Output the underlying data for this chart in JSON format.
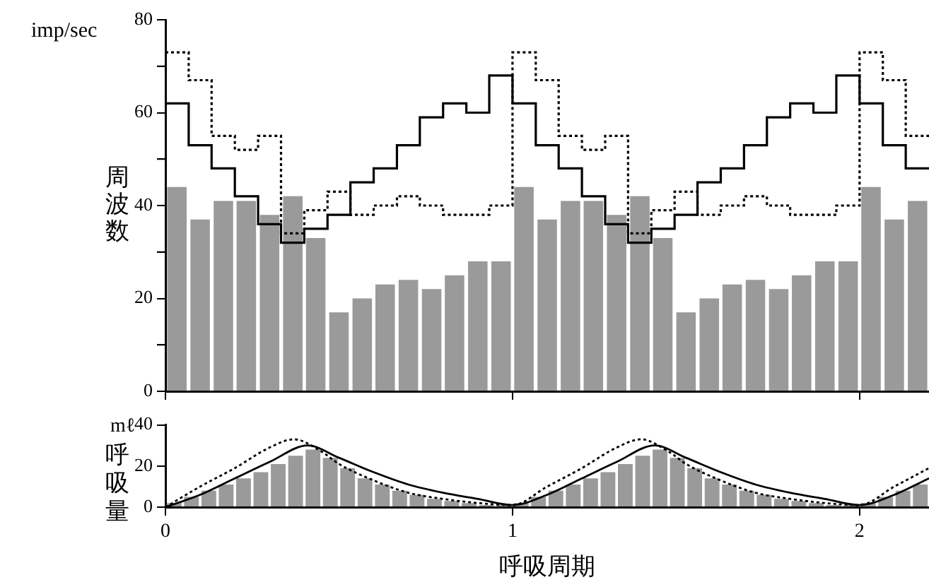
{
  "chart_data": [
    {
      "type": "step",
      "ylabel": "周波数",
      "annotations": [
        "imp/sec"
      ],
      "xlim": [
        0,
        2.2
      ],
      "xticks": [
        {
          "value": 0,
          "label": null
        },
        {
          "value": 1,
          "label": null
        },
        {
          "value": 2,
          "label": null
        }
      ],
      "ylim": [
        0,
        80
      ],
      "yticks": [
        0,
        {
          "value": 10,
          "label": null
        },
        20,
        {
          "value": 30,
          "label": null
        },
        40,
        {
          "value": 50,
          "label": null
        },
        60,
        {
          "value": 70,
          "label": null
        },
        80
      ],
      "tick_labels": "y",
      "legend": false,
      "grid": false,
      "marker": "none",
      "series": [
        {
          "type": "bar",
          "color": "#9a9a9a",
          "x": [
            0.033,
            0.1,
            0.167,
            0.233,
            0.3,
            0.367,
            0.433,
            0.5,
            0.567,
            0.633,
            0.7,
            0.767,
            0.833,
            0.9,
            0.967,
            1.033,
            1.1,
            1.167,
            1.233,
            1.3,
            1.367,
            1.433,
            1.5,
            1.567,
            1.633,
            1.7,
            1.767,
            1.833,
            1.9,
            1.967,
            2.033,
            2.1,
            2.167
          ],
          "values": [
            44,
            37,
            41,
            41,
            38,
            42,
            33,
            17,
            20,
            23,
            24,
            22,
            25,
            28,
            28,
            44,
            37,
            41,
            41,
            38,
            42,
            33,
            17,
            20,
            23,
            24,
            22,
            25,
            28,
            28,
            44,
            37,
            41
          ]
        },
        {
          "color": "#000000",
          "line_style": "solid",
          "x": [
            0,
            0.067,
            0.133,
            0.2,
            0.267,
            0.333,
            0.4,
            0.467,
            0.533,
            0.6,
            0.667,
            0.733,
            0.8,
            0.867,
            0.933,
            1,
            1.067,
            1.133,
            1.2,
            1.267,
            1.333,
            1.4,
            1.467,
            1.533,
            1.6,
            1.667,
            1.733,
            1.8,
            1.867,
            1.933,
            2,
            2.067,
            2.133,
            2.2
          ],
          "values": [
            62,
            53,
            48,
            42,
            36,
            32,
            35,
            38,
            45,
            48,
            53,
            59,
            62,
            60,
            68,
            62,
            53,
            48,
            42,
            36,
            32,
            35,
            38,
            45,
            48,
            53,
            59,
            62,
            60,
            68,
            62,
            53,
            48,
            48
          ]
        },
        {
          "color": "#000000",
          "line_style": "dotted",
          "x": [
            0,
            0.067,
            0.133,
            0.2,
            0.267,
            0.333,
            0.4,
            0.467,
            0.533,
            0.6,
            0.667,
            0.733,
            0.8,
            0.867,
            0.933,
            1,
            1.067,
            1.133,
            1.2,
            1.267,
            1.333,
            1.4,
            1.467,
            1.533,
            1.6,
            1.667,
            1.733,
            1.8,
            1.867,
            1.933,
            2,
            2.067,
            2.133,
            2.2
          ],
          "values": [
            73,
            67,
            55,
            52,
            55,
            34,
            39,
            43,
            38,
            40,
            42,
            40,
            38,
            38,
            40,
            73,
            67,
            55,
            52,
            55,
            34,
            39,
            43,
            38,
            40,
            42,
            40,
            38,
            38,
            40,
            73,
            67,
            55,
            55
          ]
        }
      ]
    },
    {
      "type": "line",
      "xlabel": "呼吸周期",
      "ylabel": "呼吸量",
      "annotations": [
        "mℓ"
      ],
      "xlim": [
        0,
        2.2
      ],
      "xticks": [
        0,
        1,
        2
      ],
      "ylim": [
        0,
        40
      ],
      "yticks": [
        0,
        20,
        40
      ],
      "legend": false,
      "grid": false,
      "marker": "none",
      "series": [
        {
          "type": "bar",
          "color": "#9a9a9a",
          "x": [
            0.025,
            0.075,
            0.125,
            0.175,
            0.225,
            0.275,
            0.325,
            0.375,
            0.425,
            0.475,
            0.525,
            0.575,
            0.625,
            0.675,
            0.725,
            0.775,
            0.825,
            0.875,
            0.925,
            0.975,
            1.025,
            1.075,
            1.125,
            1.175,
            1.225,
            1.275,
            1.325,
            1.375,
            1.425,
            1.475,
            1.525,
            1.575,
            1.625,
            1.675,
            1.725,
            1.775,
            1.825,
            1.875,
            1.925,
            1.975,
            2.025,
            2.075,
            2.125,
            2.175
          ],
          "values": [
            2,
            5,
            8,
            11,
            14,
            17,
            21,
            25,
            28,
            24,
            19,
            14,
            11,
            8,
            6,
            4,
            3,
            2,
            1,
            1,
            2,
            5,
            8,
            11,
            14,
            17,
            21,
            25,
            28,
            24,
            19,
            14,
            11,
            8,
            6,
            4,
            3,
            2,
            1,
            1,
            2,
            5,
            8,
            11
          ]
        },
        {
          "color": "#000000",
          "line_style": "solid",
          "x": [
            0,
            0.1,
            0.2,
            0.3,
            0.41,
            0.5,
            0.6,
            0.7,
            0.8,
            0.9,
            1,
            1.1,
            1.2,
            1.3,
            1.41,
            1.5,
            1.6,
            1.7,
            1.8,
            1.9,
            2,
            2.1,
            2.2
          ],
          "values": [
            0,
            6,
            14,
            22,
            30,
            24,
            17,
            11,
            7,
            4,
            1,
            6,
            14,
            22,
            30,
            24,
            17,
            11,
            7,
            4,
            1,
            6,
            14
          ]
        },
        {
          "color": "#000000",
          "line_style": "dotted",
          "x": [
            0,
            0.1,
            0.2,
            0.3,
            0.37,
            0.45,
            0.5,
            0.6,
            0.7,
            0.8,
            0.9,
            1,
            1.1,
            1.2,
            1.3,
            1.37,
            1.45,
            1.5,
            1.6,
            1.7,
            1.8,
            1.9,
            2,
            2.1,
            2.2
          ],
          "values": [
            0,
            10,
            19,
            29,
            33,
            27,
            21,
            13,
            7,
            4,
            2,
            1,
            10,
            19,
            29,
            33,
            27,
            21,
            13,
            7,
            4,
            2,
            1,
            10,
            19
          ]
        }
      ]
    }
  ]
}
